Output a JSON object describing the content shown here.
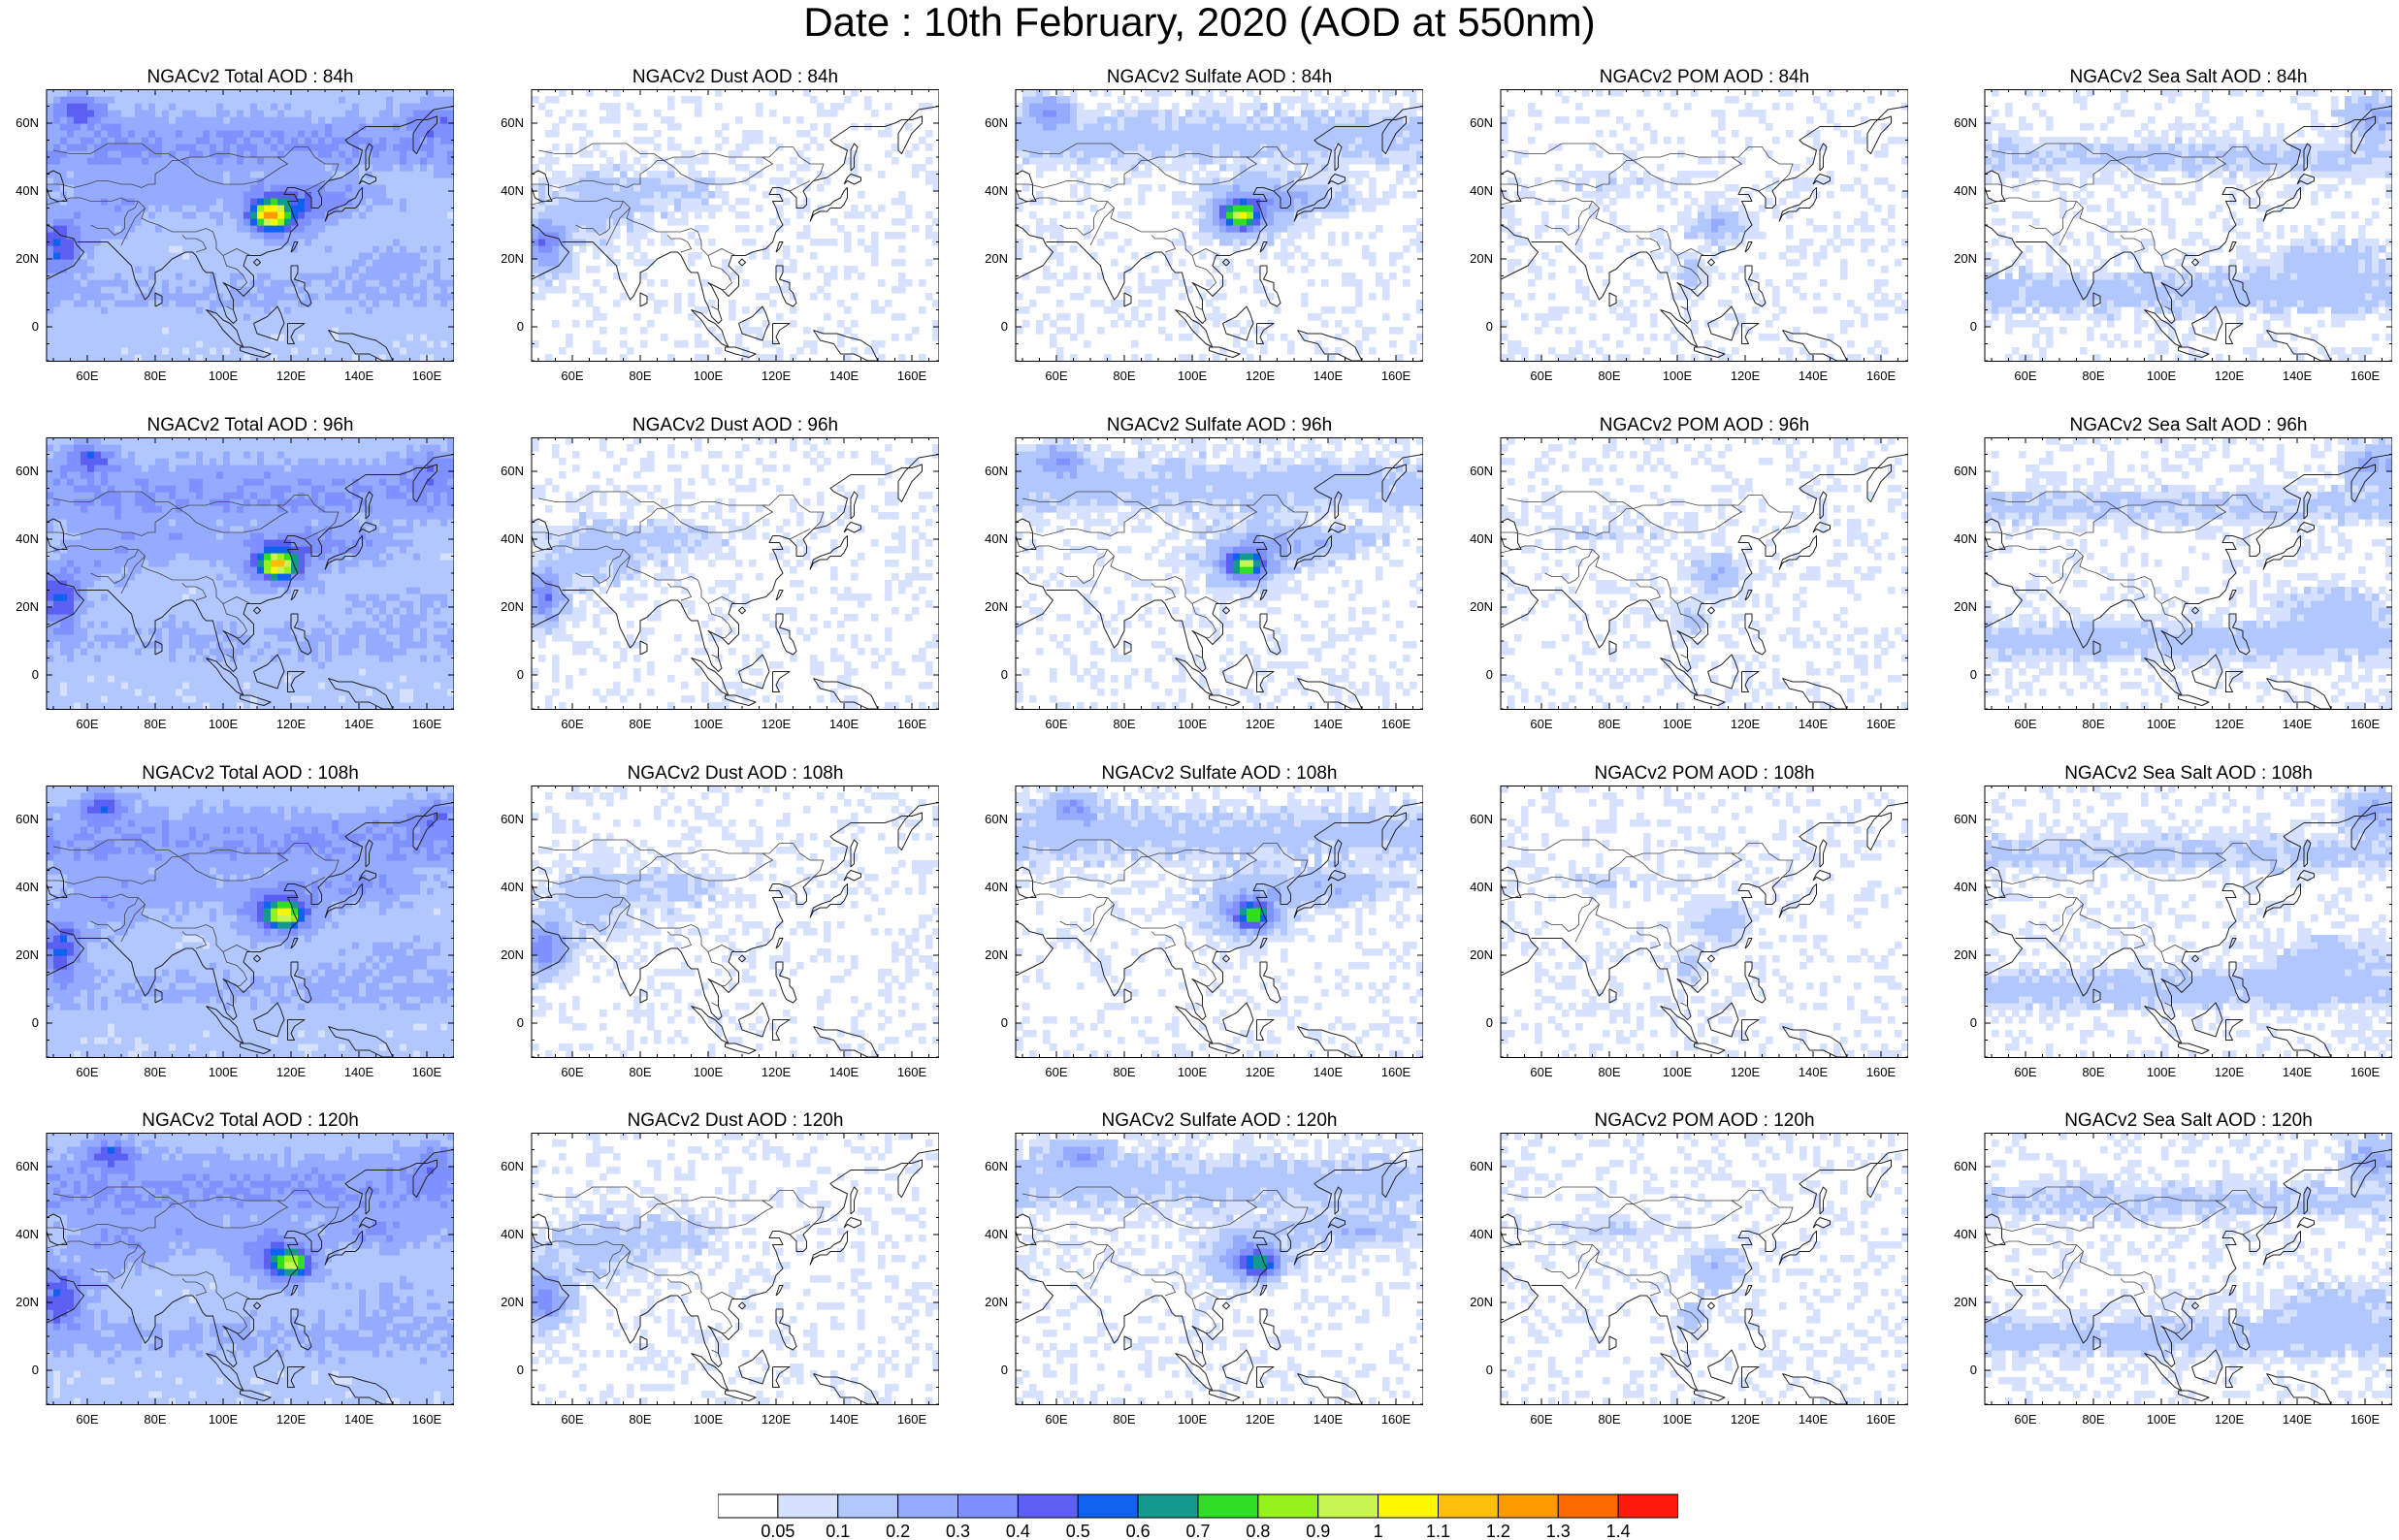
{
  "title": "Date : 10th February, 2020 (AOD at 550nm)",
  "panels": [
    {
      "title": "NGACv2 Total AOD : 84h",
      "species": "total",
      "hour": 84
    },
    {
      "title": "NGACv2 Dust AOD : 84h",
      "species": "dust",
      "hour": 84
    },
    {
      "title": "NGACv2 Sulfate AOD : 84h",
      "species": "sulfate",
      "hour": 84
    },
    {
      "title": "NGACv2 POM AOD : 84h",
      "species": "pom",
      "hour": 84
    },
    {
      "title": "NGACv2 Sea Salt AOD : 84h",
      "species": "seasalt",
      "hour": 84
    },
    {
      "title": "NGACv2 Total AOD : 96h",
      "species": "total",
      "hour": 96
    },
    {
      "title": "NGACv2 Dust AOD : 96h",
      "species": "dust",
      "hour": 96
    },
    {
      "title": "NGACv2 Sulfate AOD : 96h",
      "species": "sulfate",
      "hour": 96
    },
    {
      "title": "NGACv2 POM AOD : 96h",
      "species": "pom",
      "hour": 96
    },
    {
      "title": "NGACv2 Sea Salt AOD : 96h",
      "species": "seasalt",
      "hour": 96
    },
    {
      "title": "NGACv2 Total AOD : 108h",
      "species": "total",
      "hour": 108
    },
    {
      "title": "NGACv2 Dust AOD : 108h",
      "species": "dust",
      "hour": 108
    },
    {
      "title": "NGACv2 Sulfate AOD : 108h",
      "species": "sulfate",
      "hour": 108
    },
    {
      "title": "NGACv2 POM AOD : 108h",
      "species": "pom",
      "hour": 108
    },
    {
      "title": "NGACv2 Sea Salt AOD : 108h",
      "species": "seasalt",
      "hour": 108
    },
    {
      "title": "NGACv2 Total AOD : 120h",
      "species": "total",
      "hour": 120
    },
    {
      "title": "NGACv2 Dust AOD : 120h",
      "species": "dust",
      "hour": 120
    },
    {
      "title": "NGACv2 Sulfate AOD : 120h",
      "species": "sulfate",
      "hour": 120
    },
    {
      "title": "NGACv2 POM AOD : 120h",
      "species": "pom",
      "hour": 120
    },
    {
      "title": "NGACv2 Sea Salt  AOD : 120h",
      "species": "seasalt",
      "hour": 120
    }
  ],
  "map": {
    "lon_range": [
      48,
      168
    ],
    "lat_range": [
      -10,
      70
    ],
    "lon_ticks": [
      60,
      80,
      100,
      120,
      140,
      160
    ],
    "lon_tick_labels": [
      "60E",
      "80E",
      "100E",
      "120E",
      "140E",
      "160E"
    ],
    "lat_ticks": [
      0,
      20,
      40,
      60
    ],
    "lat_tick_labels": [
      "0",
      "20N",
      "40N",
      "60N"
    ]
  },
  "colorbar": {
    "levels": [
      0.05,
      0.1,
      0.2,
      0.3,
      0.4,
      0.5,
      0.6,
      0.7,
      0.8,
      0.9,
      1,
      1.1,
      1.2,
      1.3,
      1.4
    ],
    "labels": [
      "0.05",
      "0.1",
      "0.2",
      "0.3",
      "0.4",
      "0.5",
      "0.6",
      "0.7",
      "0.8",
      "0.9",
      "1",
      "1.1",
      "1.2",
      "1.3",
      "1.4"
    ],
    "colors": [
      "#ffffff",
      "#d6e1ff",
      "#b3c7ff",
      "#94abff",
      "#7f90ff",
      "#5c60f2",
      "#0f62ee",
      "#139a8e",
      "#2fde25",
      "#95f21d",
      "#c9f553",
      "#fff700",
      "#ffbe0a",
      "#ff9a00",
      "#ff6a00",
      "#ff1a0a"
    ]
  }
}
